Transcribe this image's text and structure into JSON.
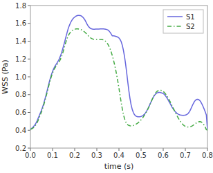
{
  "chart_data": {
    "type": "line",
    "xlabel": "time (s)",
    "ylabel": "WSS (Pa)",
    "xlim": [
      0,
      0.8
    ],
    "ylim": [
      0.2,
      1.8
    ],
    "xticks": [
      {
        "value": 0.0,
        "label": "0.0"
      },
      0.1,
      0.2,
      0.3,
      0.4,
      0.5,
      0.6,
      0.7,
      0.8
    ],
    "yticks": [
      0.2,
      0.4,
      0.6,
      0.8,
      {
        "value": 1.0,
        "label": "1.0"
      },
      1.2,
      1.4,
      1.6,
      1.8
    ],
    "grid": false,
    "legend": "upper right",
    "x": [
      0.0,
      0.005,
      0.01,
      0.015,
      0.02,
      0.025,
      0.03,
      0.035,
      0.04,
      0.045,
      0.05,
      0.055,
      0.06,
      0.065,
      0.07,
      0.075,
      0.08,
      0.085,
      0.09,
      0.095,
      0.1,
      0.105,
      0.11,
      0.115,
      0.12,
      0.125,
      0.13,
      0.135,
      0.14,
      0.145,
      0.15,
      0.155,
      0.16,
      0.165,
      0.17,
      0.175,
      0.18,
      0.185,
      0.19,
      0.195,
      0.2,
      0.205,
      0.21,
      0.215,
      0.22,
      0.225,
      0.23,
      0.235,
      0.24,
      0.245,
      0.25,
      0.255,
      0.26,
      0.265,
      0.27,
      0.275,
      0.28,
      0.285,
      0.29,
      0.295,
      0.3,
      0.305,
      0.31,
      0.315,
      0.32,
      0.325,
      0.33,
      0.335,
      0.34,
      0.345,
      0.35,
      0.355,
      0.36,
      0.365,
      0.37,
      0.375,
      0.38,
      0.385,
      0.39,
      0.395,
      0.4,
      0.405,
      0.41,
      0.415,
      0.42,
      0.425,
      0.43,
      0.435,
      0.44,
      0.445,
      0.45,
      0.455,
      0.46,
      0.465,
      0.47,
      0.475,
      0.48,
      0.485,
      0.49,
      0.495,
      0.5,
      0.505,
      0.51,
      0.515,
      0.52,
      0.525,
      0.53,
      0.535,
      0.54,
      0.545,
      0.55,
      0.555,
      0.56,
      0.565,
      0.57,
      0.575,
      0.58,
      0.585,
      0.59,
      0.595,
      0.6,
      0.605,
      0.61,
      0.615,
      0.62,
      0.625,
      0.63,
      0.635,
      0.64,
      0.645,
      0.65,
      0.655,
      0.66,
      0.665,
      0.67,
      0.675,
      0.68,
      0.685,
      0.69,
      0.695,
      0.7,
      0.705,
      0.71,
      0.715,
      0.72,
      0.725,
      0.73,
      0.735,
      0.74,
      0.745,
      0.75,
      0.755,
      0.76,
      0.765,
      0.77,
      0.775,
      0.78,
      0.785,
      0.79,
      0.795,
      0.8
    ],
    "series": [
      {
        "name": "S1",
        "color": "#6666dd",
        "line_style": "solid",
        "values": [
          0.41,
          0.42,
          0.43,
          0.445,
          0.46,
          0.48,
          0.505,
          0.535,
          0.565,
          0.595,
          0.625,
          0.66,
          0.7,
          0.745,
          0.79,
          0.84,
          0.89,
          0.94,
          0.985,
          1.025,
          1.06,
          1.09,
          1.115,
          1.135,
          1.155,
          1.175,
          1.2,
          1.23,
          1.265,
          1.305,
          1.35,
          1.395,
          1.445,
          1.49,
          1.535,
          1.57,
          1.6,
          1.625,
          1.645,
          1.66,
          1.67,
          1.68,
          1.685,
          1.69,
          1.69,
          1.688,
          1.683,
          1.673,
          1.66,
          1.643,
          1.62,
          1.595,
          1.573,
          1.558,
          1.546,
          1.54,
          1.536,
          1.534,
          1.534,
          1.535,
          1.535,
          1.536,
          1.536,
          1.537,
          1.537,
          1.538,
          1.537,
          1.536,
          1.534,
          1.531,
          1.525,
          1.515,
          1.5,
          1.48,
          1.46,
          1.46,
          1.458,
          1.455,
          1.451,
          1.445,
          1.436,
          1.42,
          1.395,
          1.355,
          1.3,
          1.23,
          1.145,
          1.045,
          0.94,
          0.84,
          0.755,
          0.685,
          0.635,
          0.6,
          0.576,
          0.562,
          0.555,
          0.552,
          0.551,
          0.552,
          0.555,
          0.56,
          0.568,
          0.58,
          0.595,
          0.615,
          0.638,
          0.663,
          0.69,
          0.718,
          0.745,
          0.77,
          0.79,
          0.805,
          0.816,
          0.822,
          0.825,
          0.825,
          0.822,
          0.818,
          0.812,
          0.802,
          0.788,
          0.77,
          0.75,
          0.728,
          0.705,
          0.682,
          0.66,
          0.64,
          0.622,
          0.607,
          0.595,
          0.585,
          0.578,
          0.573,
          0.57,
          0.568,
          0.567,
          0.568,
          0.57,
          0.575,
          0.582,
          0.595,
          0.615,
          0.64,
          0.668,
          0.695,
          0.718,
          0.735,
          0.745,
          0.748,
          0.745,
          0.735,
          0.718,
          0.695,
          0.668,
          0.638,
          0.605,
          0.57,
          0.41
        ]
      },
      {
        "name": "S2",
        "color": "#44aa44",
        "line_style": "dash-dot",
        "values": [
          0.41,
          0.415,
          0.422,
          0.432,
          0.445,
          0.462,
          0.484,
          0.512,
          0.542,
          0.574,
          0.606,
          0.642,
          0.682,
          0.726,
          0.772,
          0.82,
          0.87,
          0.92,
          0.966,
          1.007,
          1.042,
          1.072,
          1.097,
          1.118,
          1.136,
          1.152,
          1.17,
          1.193,
          1.222,
          1.258,
          1.3,
          1.345,
          1.388,
          1.425,
          1.456,
          1.48,
          1.498,
          1.512,
          1.522,
          1.53,
          1.534,
          1.537,
          1.538,
          1.538,
          1.536,
          1.533,
          1.528,
          1.521,
          1.513,
          1.503,
          1.491,
          1.478,
          1.464,
          1.451,
          1.44,
          1.432,
          1.426,
          1.422,
          1.42,
          1.42,
          1.42,
          1.42,
          1.42,
          1.42,
          1.42,
          1.418,
          1.415,
          1.408,
          1.398,
          1.384,
          1.366,
          1.342,
          1.313,
          1.278,
          1.238,
          1.192,
          1.14,
          1.082,
          1.018,
          0.948,
          0.872,
          0.792,
          0.714,
          0.642,
          0.58,
          0.532,
          0.498,
          0.476,
          0.462,
          0.454,
          0.45,
          0.449,
          0.45,
          0.453,
          0.458,
          0.464,
          0.472,
          0.481,
          0.492,
          0.504,
          0.518,
          0.533,
          0.55,
          0.568,
          0.588,
          0.61,
          0.634,
          0.66,
          0.688,
          0.717,
          0.746,
          0.773,
          0.797,
          0.817,
          0.832,
          0.842,
          0.848,
          0.85,
          0.848,
          0.843,
          0.835,
          0.824,
          0.81,
          0.793,
          0.773,
          0.751,
          0.727,
          0.702,
          0.676,
          0.65,
          0.624,
          0.599,
          0.574,
          0.551,
          0.529,
          0.509,
          0.491,
          0.475,
          0.462,
          0.452,
          0.444,
          0.439,
          0.436,
          0.436,
          0.438,
          0.442,
          0.448,
          0.456,
          0.465,
          0.474,
          0.483,
          0.49,
          0.495,
          0.497,
          0.495,
          0.488,
          0.475,
          0.457,
          0.434,
          0.407,
          0.4
        ]
      }
    ]
  }
}
